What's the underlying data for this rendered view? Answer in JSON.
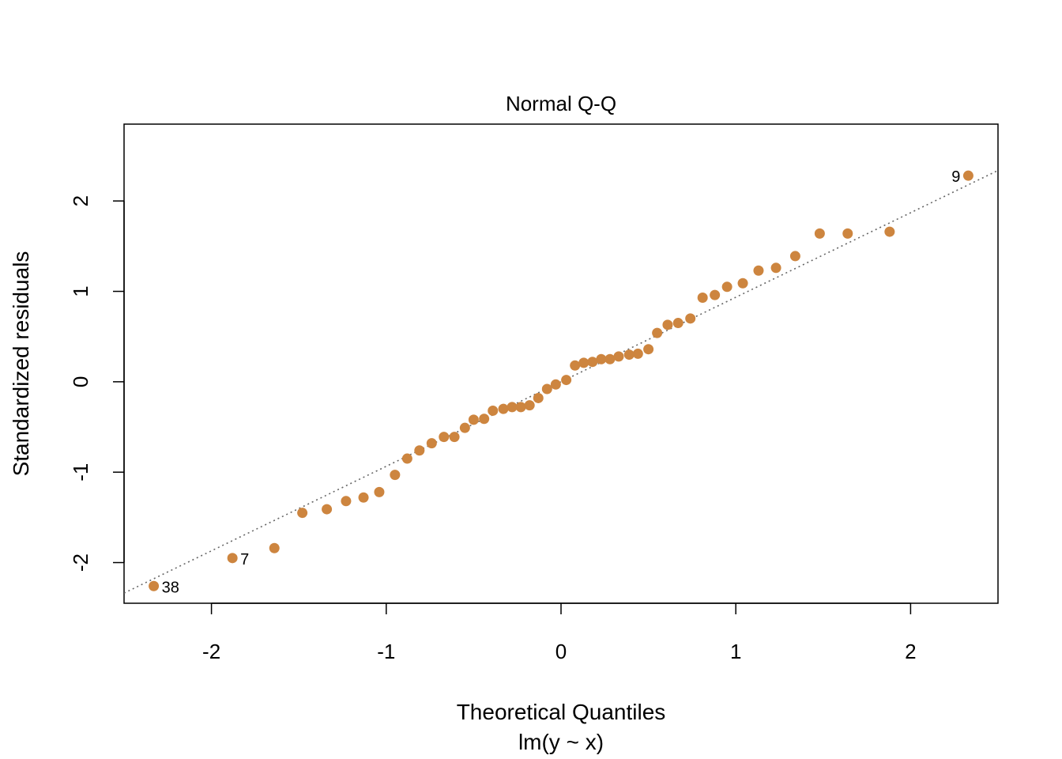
{
  "chart_data": {
    "type": "scatter",
    "title": "Normal Q-Q",
    "xlabel": "Theoretical Quantiles",
    "xsublabel": "lm(y ~ x)",
    "ylabel": "Standardized residuals",
    "xlim": [
      -2.5,
      2.5
    ],
    "ylim": [
      -2.45,
      2.85
    ],
    "x_ticks": [
      -2,
      -1,
      0,
      1,
      2
    ],
    "x_tick_labels": [
      "-2",
      "-1",
      "0",
      "1",
      "2"
    ],
    "y_ticks": [
      -2,
      -1,
      0,
      1,
      2
    ],
    "y_tick_labels": [
      "-2",
      "-1",
      "0",
      "1",
      "2"
    ],
    "point_color": "#CD853F",
    "line_color": "#666666",
    "reference_line": {
      "intercept": 0.0,
      "slope": 0.935
    },
    "labeled_points": [
      {
        "index": 0,
        "label": "38",
        "side": "right"
      },
      {
        "index": 1,
        "label": "7",
        "side": "right"
      },
      {
        "index": 49,
        "label": "9",
        "side": "left"
      }
    ],
    "points": [
      {
        "x": -2.33,
        "y": -2.26
      },
      {
        "x": -1.88,
        "y": -1.95
      },
      {
        "x": -1.64,
        "y": -1.84
      },
      {
        "x": -1.48,
        "y": -1.45
      },
      {
        "x": -1.34,
        "y": -1.41
      },
      {
        "x": -1.23,
        "y": -1.32
      },
      {
        "x": -1.13,
        "y": -1.28
      },
      {
        "x": -1.04,
        "y": -1.22
      },
      {
        "x": -0.95,
        "y": -1.03
      },
      {
        "x": -0.88,
        "y": -0.85
      },
      {
        "x": -0.81,
        "y": -0.76
      },
      {
        "x": -0.74,
        "y": -0.68
      },
      {
        "x": -0.67,
        "y": -0.61
      },
      {
        "x": -0.61,
        "y": -0.61
      },
      {
        "x": -0.55,
        "y": -0.51
      },
      {
        "x": -0.5,
        "y": -0.42
      },
      {
        "x": -0.44,
        "y": -0.41
      },
      {
        "x": -0.39,
        "y": -0.32
      },
      {
        "x": -0.33,
        "y": -0.3
      },
      {
        "x": -0.28,
        "y": -0.28
      },
      {
        "x": -0.23,
        "y": -0.28
      },
      {
        "x": -0.18,
        "y": -0.26
      },
      {
        "x": -0.13,
        "y": -0.18
      },
      {
        "x": -0.08,
        "y": -0.08
      },
      {
        "x": -0.03,
        "y": -0.03
      },
      {
        "x": 0.03,
        "y": 0.02
      },
      {
        "x": 0.08,
        "y": 0.18
      },
      {
        "x": 0.13,
        "y": 0.21
      },
      {
        "x": 0.18,
        "y": 0.22
      },
      {
        "x": 0.23,
        "y": 0.25
      },
      {
        "x": 0.28,
        "y": 0.25
      },
      {
        "x": 0.33,
        "y": 0.28
      },
      {
        "x": 0.39,
        "y": 0.3
      },
      {
        "x": 0.44,
        "y": 0.31
      },
      {
        "x": 0.5,
        "y": 0.36
      },
      {
        "x": 0.55,
        "y": 0.54
      },
      {
        "x": 0.61,
        "y": 0.63
      },
      {
        "x": 0.67,
        "y": 0.65
      },
      {
        "x": 0.74,
        "y": 0.7
      },
      {
        "x": 0.81,
        "y": 0.93
      },
      {
        "x": 0.88,
        "y": 0.96
      },
      {
        "x": 0.95,
        "y": 1.05
      },
      {
        "x": 1.04,
        "y": 1.09
      },
      {
        "x": 1.13,
        "y": 1.23
      },
      {
        "x": 1.23,
        "y": 1.26
      },
      {
        "x": 1.34,
        "y": 1.39
      },
      {
        "x": 1.48,
        "y": 1.64
      },
      {
        "x": 1.64,
        "y": 1.64
      },
      {
        "x": 1.88,
        "y": 1.66
      },
      {
        "x": 2.33,
        "y": 2.28
      }
    ]
  }
}
